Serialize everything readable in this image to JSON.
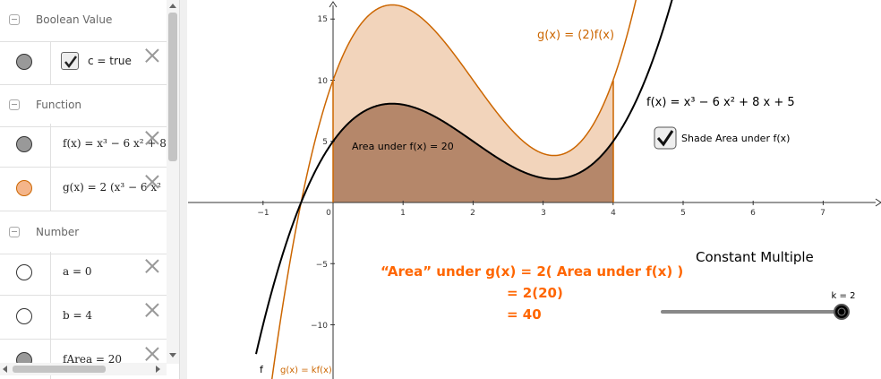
{
  "algebra": {
    "sections": [
      {
        "title": "Boolean Value"
      },
      {
        "title": "Function"
      },
      {
        "title": "Number"
      }
    ],
    "rows": {
      "c": {
        "text": "c = true",
        "dot_color": "#999999",
        "checked": true
      },
      "f": {
        "text": "f(x) = x³ − 6 x² + 8",
        "dot_color": "#999999"
      },
      "g": {
        "text": "g(x) = 2 (x³ − 6 x²",
        "dot_color": "#f4b58a"
      },
      "a": {
        "text": "a = 0",
        "dot_color": "#ffffff"
      },
      "b": {
        "text": "b = 4",
        "dot_color": "#ffffff"
      },
      "fArea": {
        "text": "fArea = 20",
        "dot_color": "#999999"
      }
    }
  },
  "graph": {
    "axis_ticks": {
      "x": [
        "−1",
        "0",
        "1",
        "2",
        "3",
        "4",
        "5",
        "6",
        "7"
      ],
      "y": [
        "15",
        "10",
        "5",
        "−5",
        "−10"
      ]
    },
    "labels": {
      "g_equation": "g(x) = (2)f(x)",
      "f_equation": "f(x) = x³ − 6 x² + 8 x + 5",
      "area_f": "Area under f(x) = 20",
      "shade_checkbox": "Shade Area under f(x)",
      "title": "Constant Multiple",
      "slider_label": "k = 2",
      "f_curve_label": "f",
      "g_curve_label": "g(x) = kf(x)"
    },
    "explanation": {
      "line1": "“Area” under g(x) = 2( Area under f(x) )",
      "line2": "= 2(20)",
      "line3": "= 40"
    },
    "slider": {
      "min": 0,
      "max": 2,
      "value": 2
    },
    "colors": {
      "f_curve": "#000000",
      "g_curve": "#cc6600",
      "f_fill": "#b5876a",
      "g_fill": "#f2d4bb",
      "explanation": "#ff6600"
    }
  }
}
